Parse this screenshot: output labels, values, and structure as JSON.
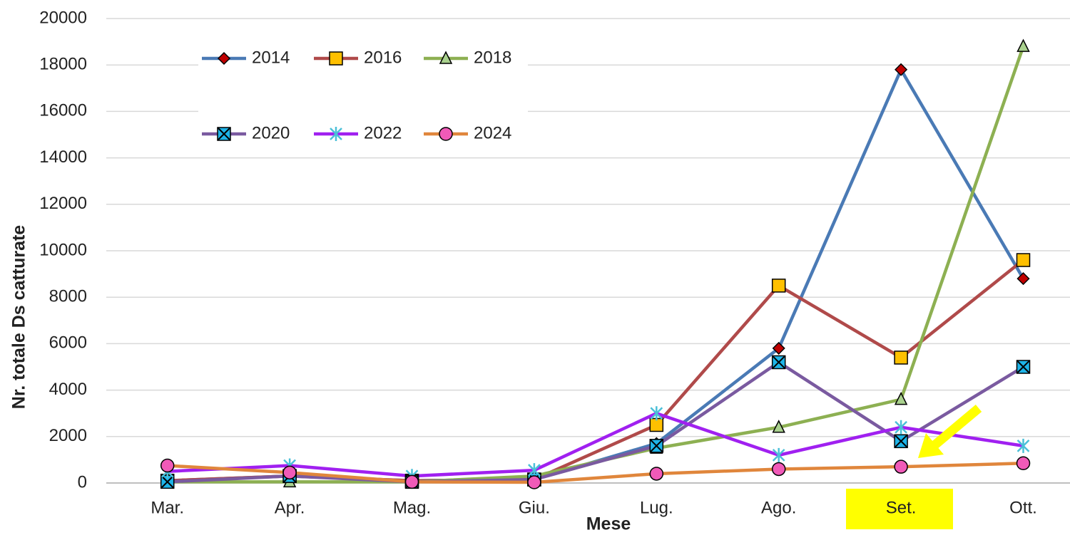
{
  "chart_data": {
    "type": "line",
    "x_label": "Mese",
    "y_label": "Nr. totale Ds catturate",
    "categories": [
      "Mar.",
      "Apr.",
      "Mag.",
      "Giu.",
      "Lug.",
      "Ago.",
      "Set.",
      "Ott."
    ],
    "ylim": [
      0,
      20000
    ],
    "yticks": [
      0,
      2000,
      4000,
      6000,
      8000,
      10000,
      12000,
      14000,
      16000,
      18000,
      20000
    ],
    "grid": true,
    "legend": "top-left",
    "series": [
      {
        "name": "2014",
        "color": "#4a7ab5",
        "marker": "diamond",
        "marker_color": "#c00000",
        "values": [
          100,
          300,
          100,
          150,
          1700,
          5800,
          17800,
          8800
        ]
      },
      {
        "name": "2016",
        "color": "#b04a4a",
        "marker": "square",
        "marker_color": "#ffc000",
        "values": [
          100,
          300,
          100,
          150,
          2500,
          8500,
          5400,
          9600
        ]
      },
      {
        "name": "2018",
        "color": "#8db052",
        "marker": "triangle",
        "marker_color": "#a9d18e",
        "values": [
          50,
          50,
          50,
          300,
          1500,
          2400,
          3600,
          18800
        ]
      },
      {
        "name": "2020",
        "color": "#7a5aa0",
        "marker": "xsquare",
        "marker_color": "#1eb4e8",
        "values": [
          50,
          300,
          50,
          150,
          1600,
          5200,
          1800,
          5000
        ]
      },
      {
        "name": "2022",
        "color": "#a020f0",
        "marker": "asterisk",
        "marker_color": "#4bc0d8",
        "values": [
          500,
          750,
          300,
          550,
          3000,
          1200,
          2400,
          1600
        ]
      },
      {
        "name": "2024",
        "color": "#e0863c",
        "marker": "circle",
        "marker_color": "#f05ab8",
        "values": [
          750,
          450,
          50,
          30,
          400,
          600,
          700,
          850
        ]
      }
    ]
  }
}
